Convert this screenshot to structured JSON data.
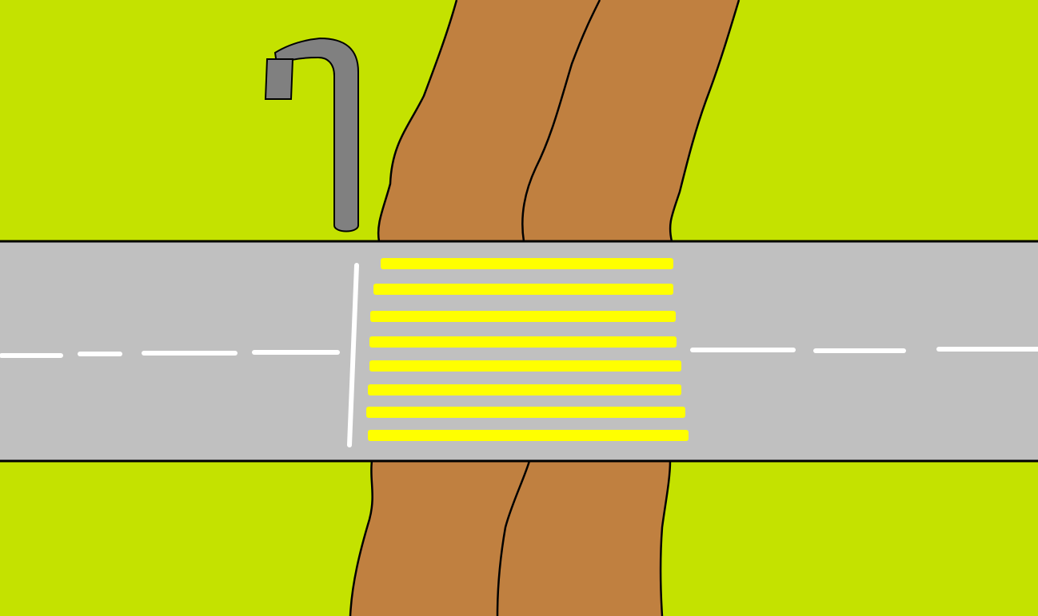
{
  "scene": {
    "description_elements": [
      "grass",
      "road",
      "dirt-path",
      "crosswalk",
      "street-lamp"
    ],
    "crosswalk": {
      "stripe_count": 8
    },
    "colors": {
      "grass": "#c4e200",
      "road": "#c0c0c0",
      "road_edge": "#000000",
      "path": "#c08040",
      "path_outline": "#000000",
      "crosswalk_stripe": "#ffff00",
      "lane_marking": "#ffffff",
      "lamp": "#808080",
      "lamp_outline": "#000000"
    }
  }
}
